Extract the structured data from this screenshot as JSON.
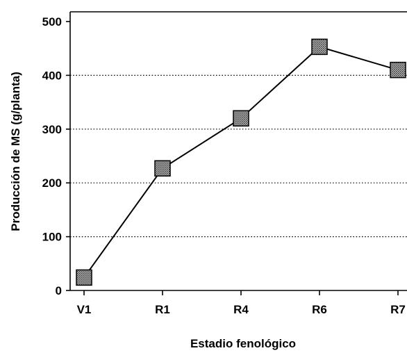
{
  "chart_data": {
    "type": "line",
    "xlabel": "Estadio fenológico",
    "ylabel": "Producción de MS (g/planta)",
    "categories": [
      "V1",
      "R1",
      "R4",
      "R6",
      "R7"
    ],
    "series": [
      {
        "values": [
          24,
          227,
          320,
          453,
          410
        ]
      }
    ],
    "ylim": [
      0,
      500
    ],
    "yticks": [
      0,
      100,
      200,
      300,
      400,
      500
    ],
    "grid": "horizontal dotted",
    "marker": "square",
    "colors": {
      "line": "#000000",
      "marker_fill": "#8a8a8a",
      "grid": "#000000"
    }
  }
}
